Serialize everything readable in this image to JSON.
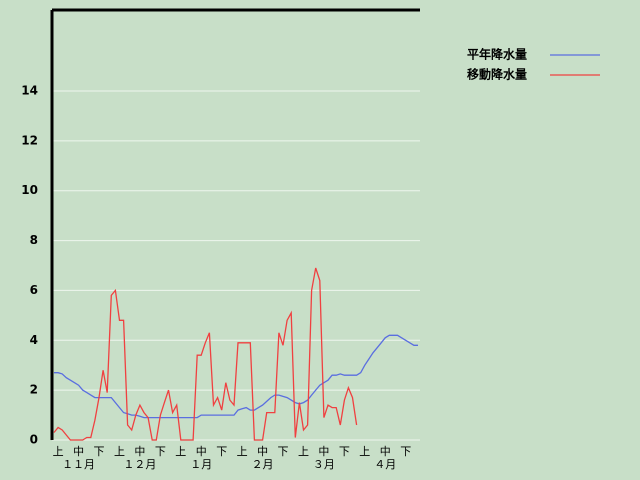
{
  "chart_data": {
    "type": "line",
    "categories": [
      null,
      "上",
      null,
      null,
      null,
      null,
      "中",
      null,
      null,
      null,
      null,
      "下",
      null,
      null,
      null,
      null,
      "上",
      null,
      null,
      null,
      null,
      "中",
      null,
      null,
      null,
      null,
      "下",
      null,
      null,
      null,
      null,
      "上",
      null,
      null,
      null,
      null,
      "中",
      null,
      null,
      null,
      null,
      "下",
      null,
      null,
      null,
      null,
      "上",
      null,
      null,
      null,
      null,
      "中",
      null,
      null,
      null,
      null,
      "下",
      null,
      null,
      null,
      null,
      "上",
      null,
      null,
      null,
      null,
      "中",
      null,
      null,
      null,
      null,
      "下",
      null,
      null,
      null,
      null,
      "上",
      null,
      null,
      null,
      null,
      "中",
      null,
      null,
      null,
      null,
      "下",
      null,
      null,
      null
    ],
    "months": [
      "１１月",
      "１２月",
      "１月",
      "２月",
      "３月",
      "４月"
    ],
    "series": [
      {
        "name": "平年降水量",
        "color": "#5a6ee0",
        "values": [
          2.7,
          2.7,
          2.65,
          2.5,
          2.4,
          2.3,
          2.2,
          2.0,
          1.9,
          1.8,
          1.7,
          1.7,
          1.7,
          1.7,
          1.7,
          1.5,
          1.3,
          1.1,
          1.05,
          1.0,
          1.0,
          0.95,
          0.9,
          0.9,
          0.9,
          0.9,
          0.9,
          0.9,
          0.9,
          0.9,
          0.9,
          0.9,
          0.9,
          0.9,
          0.9,
          0.9,
          1.0,
          1.0,
          1.0,
          1.0,
          1.0,
          1.0,
          1.0,
          1.0,
          1.0,
          1.2,
          1.25,
          1.3,
          1.2,
          1.2,
          1.3,
          1.4,
          1.55,
          1.7,
          1.8,
          1.8,
          1.75,
          1.7,
          1.6,
          1.5,
          1.45,
          1.5,
          1.6,
          1.8,
          2.0,
          2.2,
          2.3,
          2.4,
          2.6,
          2.6,
          2.65,
          2.6,
          2.6,
          2.6,
          2.6,
          2.7,
          3.0,
          3.25,
          3.5,
          3.7,
          3.9,
          4.1,
          4.2,
          4.2,
          4.2,
          4.1,
          4.0,
          3.9,
          3.8,
          3.8
        ]
      },
      {
        "name": "移動降水量",
        "color": "#f04040",
        "values": [
          0.3,
          0.5,
          0.4,
          0.2,
          0,
          0,
          0,
          0,
          0.1,
          0.1,
          0.8,
          1.7,
          2.8,
          1.9,
          5.8,
          6.0,
          4.8,
          4.8,
          0.6,
          0.4,
          1.0,
          1.4,
          1.1,
          0.9,
          0,
          0,
          1.0,
          1.5,
          2.0,
          1.1,
          1.4,
          0,
          0,
          0,
          0,
          3.4,
          3.4,
          3.9,
          4.3,
          1.4,
          1.7,
          1.2,
          2.3,
          1.6,
          1.4,
          3.9,
          3.9,
          3.9,
          3.9,
          0,
          0,
          0,
          1.1,
          1.1,
          1.1,
          4.3,
          3.8,
          4.8,
          5.1,
          0.1,
          1.5,
          0.4,
          0.6,
          6.0,
          6.9,
          6.4,
          0.9,
          1.4,
          1.3,
          1.3,
          0.6,
          1.6,
          2.1,
          1.7,
          0.6,
          null,
          null,
          null,
          null,
          null,
          null,
          null,
          null,
          null,
          null,
          null,
          null,
          null,
          null,
          null
        ]
      }
    ],
    "ylim": [
      0,
      17.25
    ],
    "yticks": [
      0,
      2,
      4,
      6,
      8,
      10,
      12,
      14
    ],
    "grid": true
  }
}
